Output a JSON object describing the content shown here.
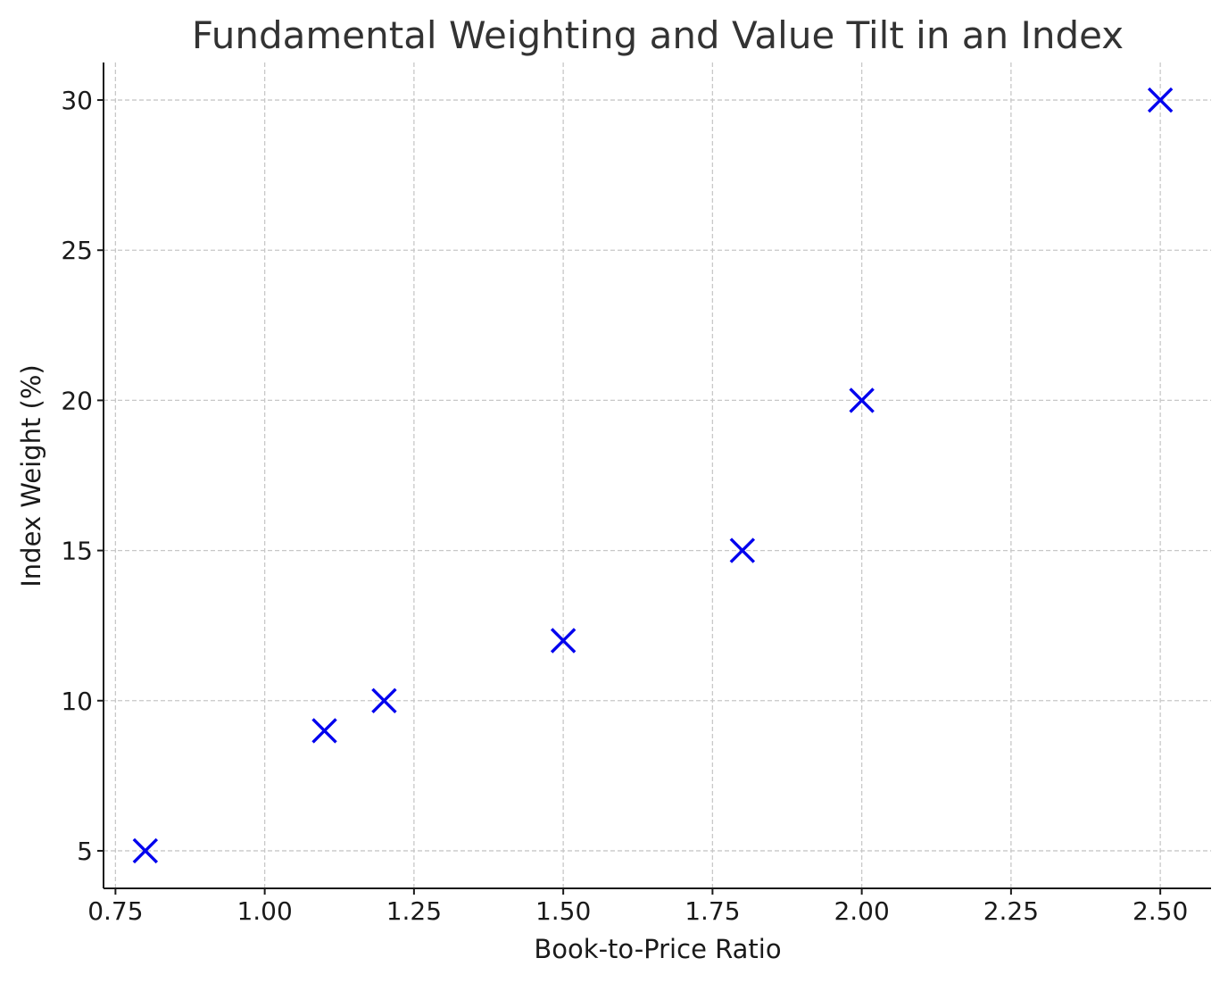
{
  "chart_data": {
    "type": "scatter",
    "title": "Fundamental Weighting and Value Tilt in an Index",
    "xlabel": "Book-to-Price Ratio",
    "ylabel": "Index Weight (%)",
    "xlim": [
      0.73,
      2.585
    ],
    "ylim": [
      3.75,
      31.25
    ],
    "xticks": [
      0.75,
      1.0,
      1.25,
      1.5,
      1.75,
      2.0,
      2.25,
      2.5
    ],
    "xtick_labels": [
      "0.75",
      "1.00",
      "1.25",
      "1.50",
      "1.75",
      "2.00",
      "2.25",
      "2.50"
    ],
    "yticks": [
      5,
      10,
      15,
      20,
      25,
      30
    ],
    "ytick_labels": [
      "5",
      "10",
      "15",
      "20",
      "25",
      "30"
    ],
    "grid": true,
    "marker": "x",
    "color": "#0000ee",
    "series": [
      {
        "x": [
          0.8,
          1.1,
          1.2,
          1.5,
          1.8,
          2.0,
          2.5
        ],
        "y": [
          5,
          9,
          10,
          12,
          15,
          20,
          30
        ]
      }
    ]
  }
}
